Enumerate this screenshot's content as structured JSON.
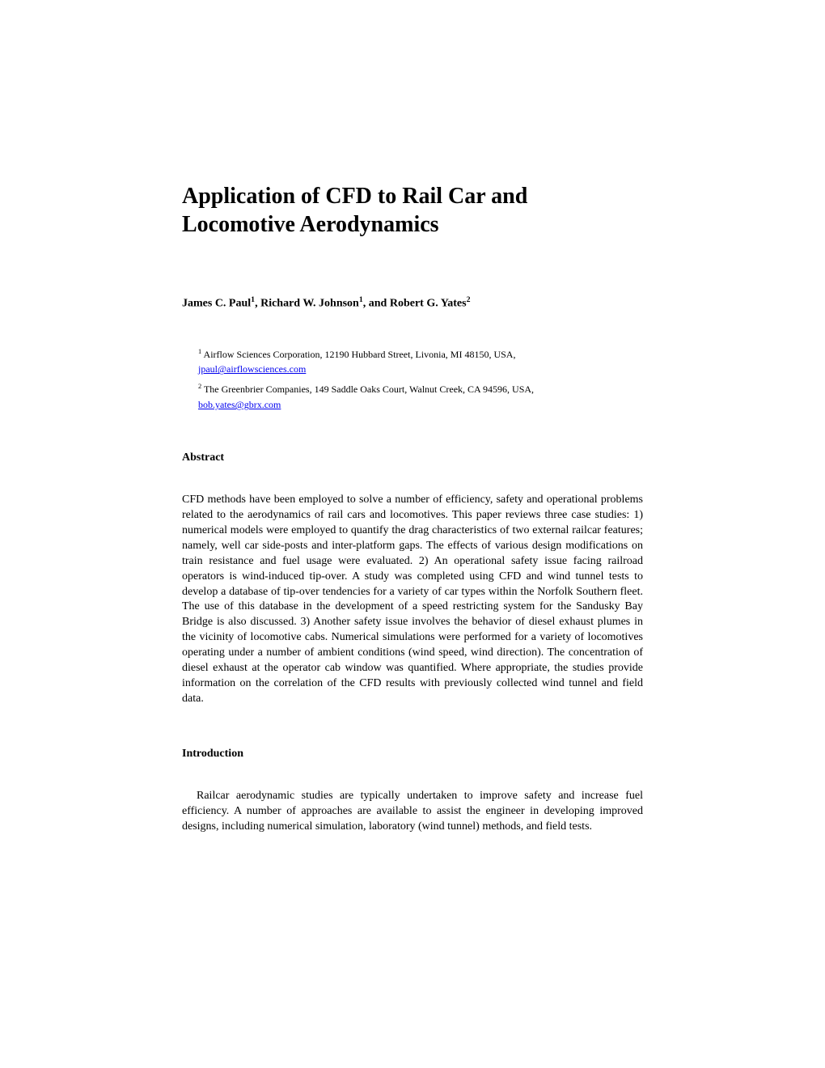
{
  "title": "Application of CFD to Rail Car and Locomotive Aerodynamics",
  "authors_html": "James C. Paul<sup>1</sup>, Richard W. Johnson<sup>1</sup>, and Robert G. Yates<sup>2</sup>",
  "affiliations": [
    {
      "text_html": "<sup>1</sup> Airflow Sciences Corporation, 12190 Hubbard Street, Livonia, MI  48150, USA,",
      "email": "jpaul@airflowsciences.com"
    },
    {
      "text_html": "<sup>2</sup> The Greenbrier Companies, 149 Saddle Oaks Court, Walnut Creek, CA  94596, USA,",
      "email": "bob.yates@gbrx.com"
    }
  ],
  "sections": {
    "abstract_heading": "Abstract",
    "abstract_text": "CFD methods have been employed to solve a number of efficiency, safety and operational problems related to the aerodynamics of rail cars and locomotives.  This paper reviews three case studies: 1) numerical models were employed to quantify the drag characteristics of two external railcar features; namely, well car side-posts and inter-platform gaps.  The effects of various design modifications on train resistance and fuel usage were evaluated.  2) An operational safety issue facing railroad operators is wind-induced tip-over.   A study was completed using CFD and wind tunnel tests to develop a database of tip-over tendencies for a variety of car types within the Norfolk Southern fleet.  The use of this database in the development of a speed restricting system for the Sandusky Bay Bridge is also discussed.  3) Another safety issue involves the behavior of diesel exhaust plumes in the vicinity of locomotive cabs.  Numerical simulations were performed for a variety of locomotives operating under a number of ambient conditions (wind speed, wind direction).  The concentration of diesel exhaust at the operator cab window was quantified.  Where appropriate, the studies provide information on the correlation of the CFD results with previously collected wind tunnel and field data.",
    "intro_heading": "Introduction",
    "intro_text": "Railcar aerodynamic studies are typically undertaken to improve safety and increase fuel efficiency.   A number of approaches are available to assist the engineer in developing improved designs, including numerical simulation, laboratory (wind tunnel) methods, and field tests."
  },
  "colors": {
    "background": "#ffffff",
    "text": "#000000",
    "link": "#0000ee"
  },
  "typography": {
    "title_fontsize": 28,
    "authors_fontsize": 14,
    "affiliation_fontsize": 12,
    "heading_fontsize": 14,
    "body_fontsize": 14,
    "font_family": "Times New Roman"
  }
}
